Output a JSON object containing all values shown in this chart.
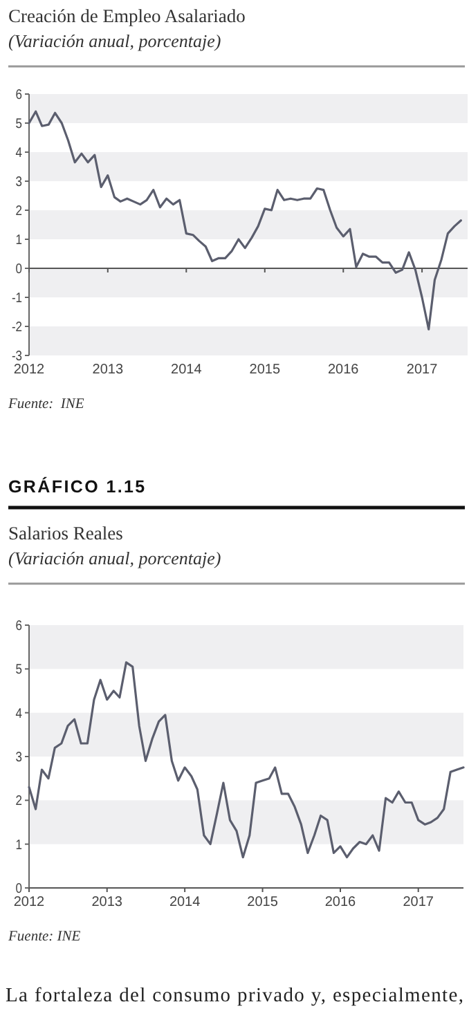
{
  "chart_data": [
    {
      "type": "line",
      "title": "Creación de Empleo Asalariado",
      "subtitle": "(Variación anual, porcentaje)",
      "annotations": [
        "Fuente:  INE"
      ],
      "x": [
        "2012-01",
        "2012-02",
        "2012-03",
        "2012-04",
        "2012-05",
        "2012-06",
        "2012-07",
        "2012-08",
        "2012-09",
        "2012-10",
        "2012-11",
        "2012-12",
        "2013-01",
        "2013-02",
        "2013-03",
        "2013-04",
        "2013-05",
        "2013-06",
        "2013-07",
        "2013-08",
        "2013-09",
        "2013-10",
        "2013-11",
        "2013-12",
        "2014-01",
        "2014-02",
        "2014-03",
        "2014-04",
        "2014-05",
        "2014-06",
        "2014-07",
        "2014-08",
        "2014-09",
        "2014-10",
        "2014-11",
        "2014-12",
        "2015-01",
        "2015-02",
        "2015-03",
        "2015-04",
        "2015-05",
        "2015-06",
        "2015-07",
        "2015-08",
        "2015-09",
        "2015-10",
        "2015-11",
        "2015-12",
        "2016-01",
        "2016-02",
        "2016-03",
        "2016-04",
        "2016-05",
        "2016-06",
        "2016-07",
        "2016-08",
        "2016-09",
        "2016-10",
        "2016-11",
        "2016-12",
        "2017-01",
        "2017-02",
        "2017-03",
        "2017-04",
        "2017-05",
        "2017-06",
        "2017-07"
      ],
      "series": [
        {
          "color": "#5b5e6e",
          "values": [
            5.0,
            5.4,
            4.9,
            4.95,
            5.35,
            5.0,
            4.4,
            3.65,
            3.95,
            3.65,
            3.9,
            2.8,
            3.2,
            2.45,
            2.3,
            2.4,
            2.3,
            2.2,
            2.35,
            2.7,
            2.1,
            2.4,
            2.2,
            2.35,
            1.2,
            1.15,
            0.95,
            0.75,
            0.25,
            0.35,
            0.35,
            0.6,
            1.0,
            0.7,
            1.05,
            1.45,
            2.05,
            2.0,
            2.7,
            2.35,
            2.4,
            2.35,
            2.4,
            2.4,
            2.75,
            2.7,
            2.0,
            1.4,
            1.1,
            1.35,
            0.05,
            0.5,
            0.4,
            0.4,
            0.2,
            0.2,
            -0.15,
            -0.05,
            0.55,
            -0.05,
            -1.0,
            -2.1,
            -0.4,
            0.3,
            1.2,
            1.45,
            1.65
          ]
        }
      ],
      "xlim": [
        "2012-01",
        "2017-08"
      ],
      "xticks": [
        "2012",
        "2013",
        "2014",
        "2015",
        "2016",
        "2017"
      ],
      "ylim": [
        -3,
        6
      ],
      "yticks": [
        -3,
        -2,
        -1,
        0,
        1,
        2,
        3,
        4,
        5,
        6
      ],
      "marker": "none",
      "line_style": "solid",
      "bands": [
        {
          "axis": "y",
          "from": 5,
          "to": 6,
          "color": "#efeff1"
        },
        {
          "axis": "y",
          "from": 3,
          "to": 4,
          "color": "#efeff1"
        },
        {
          "axis": "y",
          "from": 1,
          "to": 2,
          "color": "#efeff1"
        },
        {
          "axis": "y",
          "from": -1,
          "to": 0,
          "color": "#efeff1"
        },
        {
          "axis": "y",
          "from": -3,
          "to": -2,
          "color": "#efeff1"
        }
      ]
    },
    {
      "type": "line",
      "title": "Salarios Reales",
      "subtitle": "(Variación anual, porcentaje)",
      "annotations": [
        "GRÁFICO 1.15",
        "Fuente: INE",
        "La fortaleza del consumo privado y, especialmente,"
      ],
      "x": [
        "2012-01",
        "2012-02",
        "2012-03",
        "2012-04",
        "2012-05",
        "2012-06",
        "2012-07",
        "2012-08",
        "2012-09",
        "2012-10",
        "2012-11",
        "2012-12",
        "2013-01",
        "2013-02",
        "2013-03",
        "2013-04",
        "2013-05",
        "2013-06",
        "2013-07",
        "2013-08",
        "2013-09",
        "2013-10",
        "2013-11",
        "2013-12",
        "2014-01",
        "2014-02",
        "2014-03",
        "2014-04",
        "2014-05",
        "2014-06",
        "2014-07",
        "2014-08",
        "2014-09",
        "2014-10",
        "2014-11",
        "2014-12",
        "2015-01",
        "2015-02",
        "2015-03",
        "2015-04",
        "2015-05",
        "2015-06",
        "2015-07",
        "2015-08",
        "2015-09",
        "2015-10",
        "2015-11",
        "2015-12",
        "2016-01",
        "2016-02",
        "2016-03",
        "2016-04",
        "2016-05",
        "2016-06",
        "2016-07",
        "2016-08",
        "2016-09",
        "2016-10",
        "2016-11",
        "2016-12",
        "2017-01",
        "2017-02",
        "2017-03",
        "2017-04",
        "2017-05",
        "2017-06",
        "2017-07",
        "2017-08"
      ],
      "series": [
        {
          "color": "#5b5e6e",
          "values": [
            2.3,
            1.8,
            2.7,
            2.5,
            3.2,
            3.3,
            3.7,
            3.85,
            3.3,
            3.3,
            4.3,
            4.75,
            4.3,
            4.5,
            4.35,
            5.15,
            5.05,
            3.7,
            2.9,
            3.4,
            3.8,
            3.95,
            2.9,
            2.45,
            2.75,
            2.55,
            2.25,
            1.2,
            1.0,
            1.7,
            2.4,
            1.55,
            1.3,
            0.7,
            1.2,
            2.4,
            2.45,
            2.5,
            2.75,
            2.15,
            2.15,
            1.85,
            1.45,
            0.8,
            1.2,
            1.65,
            1.55,
            0.8,
            0.95,
            0.7,
            0.9,
            1.05,
            1.0,
            1.2,
            0.85,
            2.05,
            1.95,
            2.2,
            1.95,
            1.95,
            1.55,
            1.45,
            1.5,
            1.6,
            1.8,
            2.65,
            2.7,
            2.75
          ]
        }
      ],
      "xlim": [
        "2012-01",
        "2017-08"
      ],
      "xticks": [
        "2012",
        "2013",
        "2014",
        "2015",
        "2016",
        "2017"
      ],
      "ylim": [
        0,
        6
      ],
      "yticks": [
        0,
        1,
        2,
        3,
        4,
        5,
        6
      ],
      "marker": "none",
      "line_style": "solid",
      "bands": [
        {
          "axis": "y",
          "from": 5,
          "to": 6,
          "color": "#efeff1"
        },
        {
          "axis": "y",
          "from": 3,
          "to": 4,
          "color": "#efeff1"
        },
        {
          "axis": "y",
          "from": 1,
          "to": 2,
          "color": "#efeff1"
        }
      ]
    }
  ]
}
